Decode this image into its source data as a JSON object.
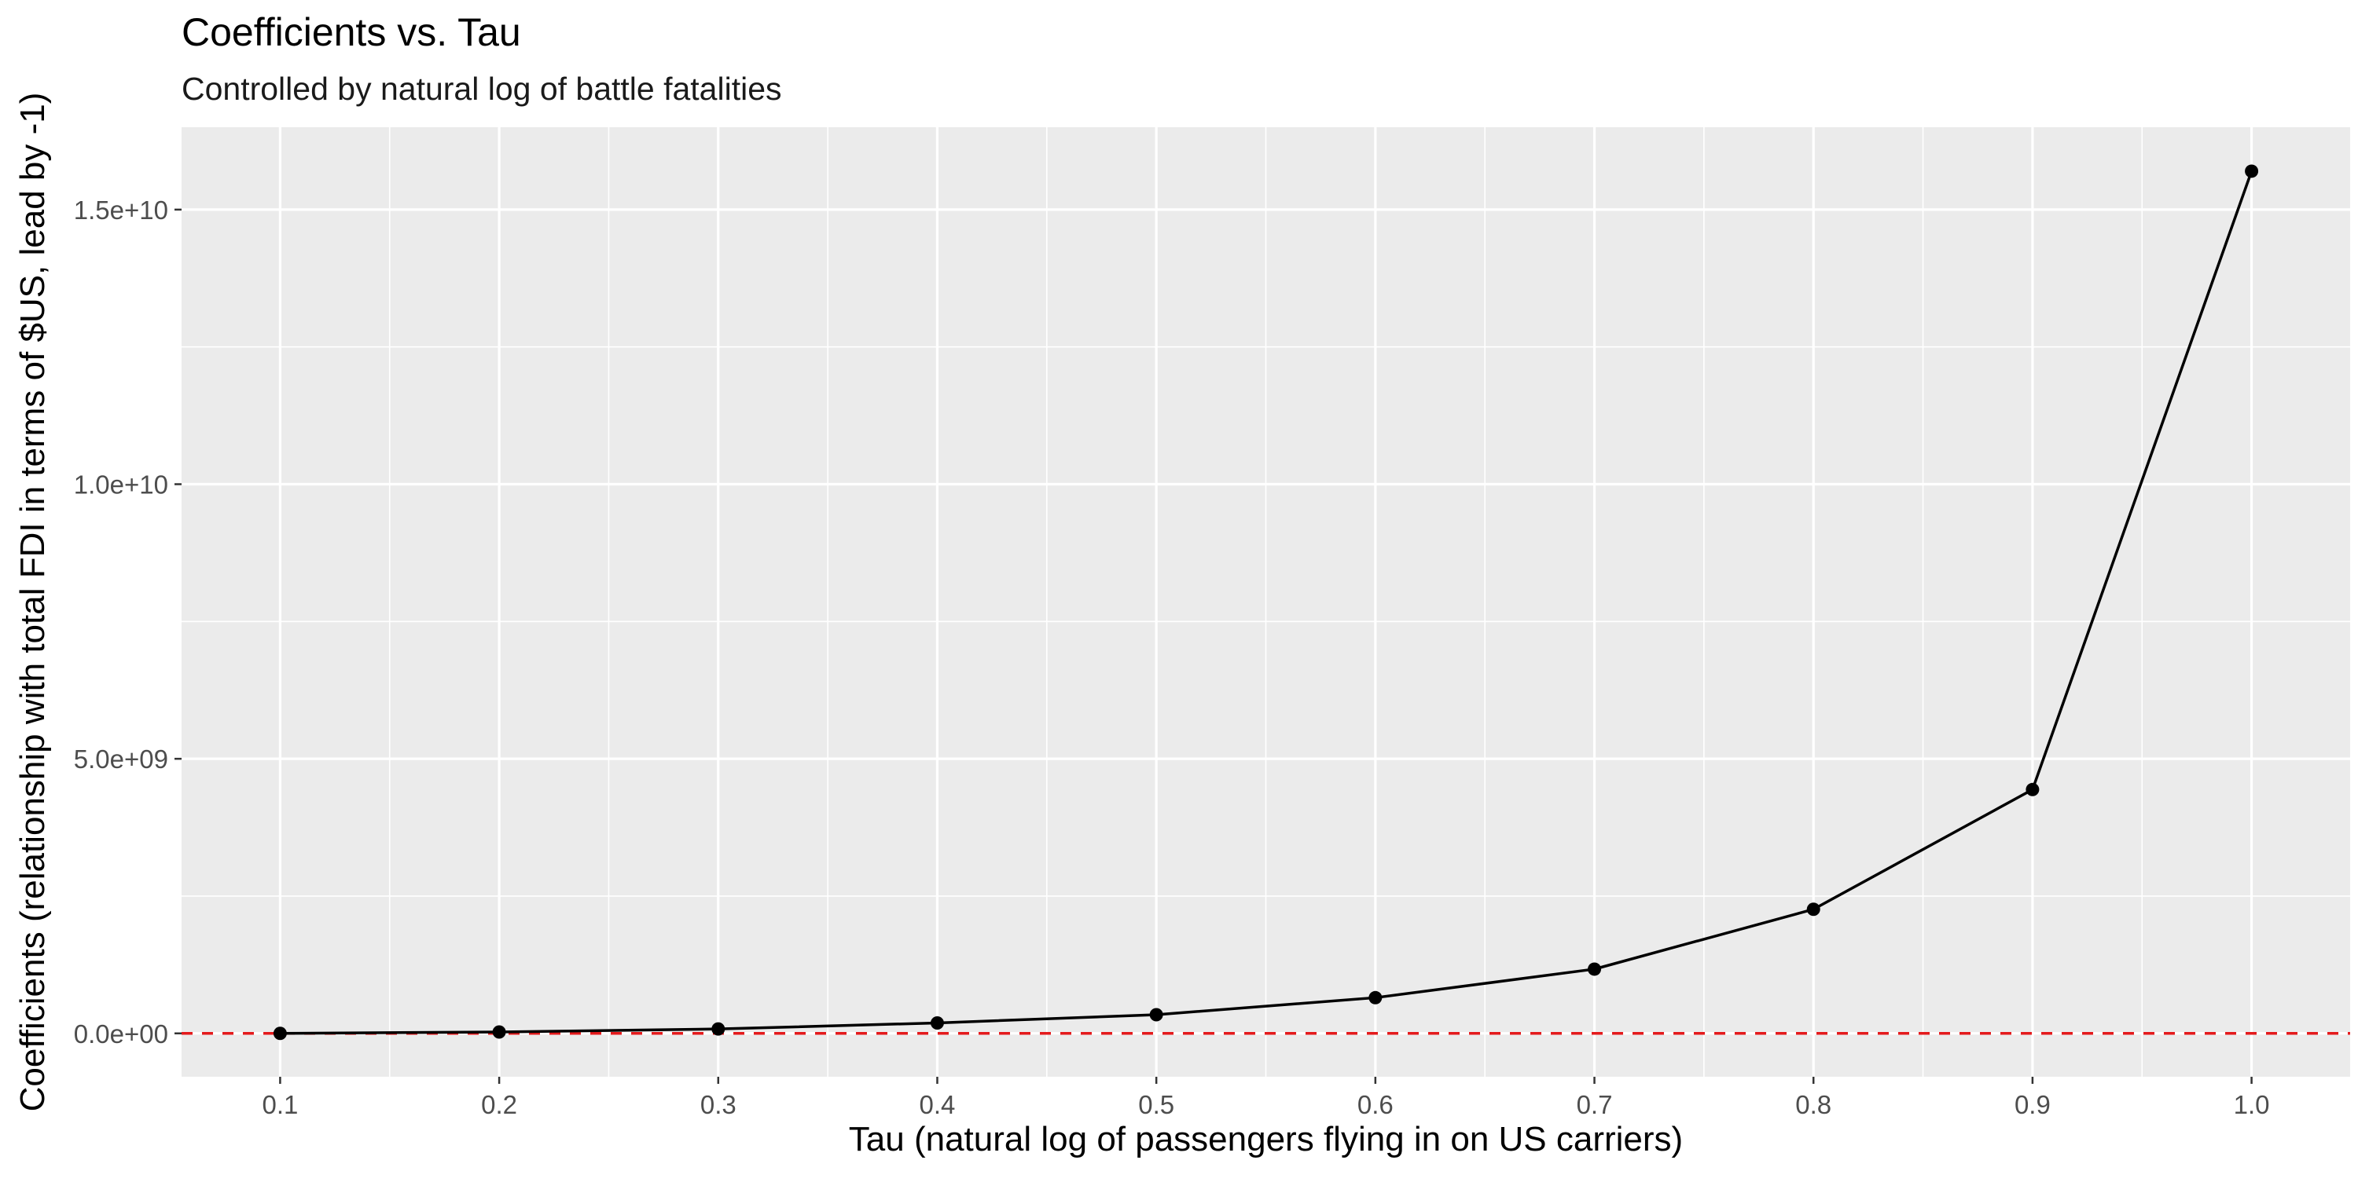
{
  "chart_data": {
    "type": "line",
    "title": "Coefficients vs. Tau",
    "subtitle": "Controlled by natural log of battle fatalities",
    "xlabel": "Tau (natural log of passengers flying in on US carriers)",
    "ylabel": "Coefficients (relationship with total FDI in terms of $US, lead by -1)",
    "x": [
      0.1,
      0.2,
      0.3,
      0.4,
      0.5,
      0.6,
      0.7,
      0.8,
      0.9,
      1.0
    ],
    "series": [
      {
        "values": [
          0,
          25000000,
          80000000,
          190000000,
          340000000,
          650000000,
          1170000000,
          2260000000,
          4440000000,
          15700000000
        ]
      }
    ],
    "xlim": [
      0.055,
      1.045
    ],
    "ylim": [
      -790000000,
      16500000000
    ],
    "x_ticks": [
      0.1,
      0.2,
      0.3,
      0.4,
      0.5,
      0.6,
      0.7,
      0.8,
      0.9,
      1.0
    ],
    "x_tick_labels": [
      "0.1",
      "0.2",
      "0.3",
      "0.4",
      "0.5",
      "0.6",
      "0.7",
      "0.8",
      "0.9",
      "1.0"
    ],
    "y_ticks": [
      0,
      5000000000,
      10000000000,
      15000000000
    ],
    "y_tick_labels": [
      "0.0e+00",
      "5.0e+09",
      "1.0e+10",
      "1.5e+10"
    ],
    "reference_line": {
      "y": 0,
      "style": "dashed",
      "color": "#e41a1c"
    },
    "grid": true,
    "legend": "none",
    "colors": {
      "panel": "#ebebeb",
      "grid": "#ffffff",
      "line": "#000000",
      "points": "#000000",
      "reference": "#e41a1c",
      "text": "#1a1a1a",
      "tick_text": "#4d4d4d"
    }
  }
}
